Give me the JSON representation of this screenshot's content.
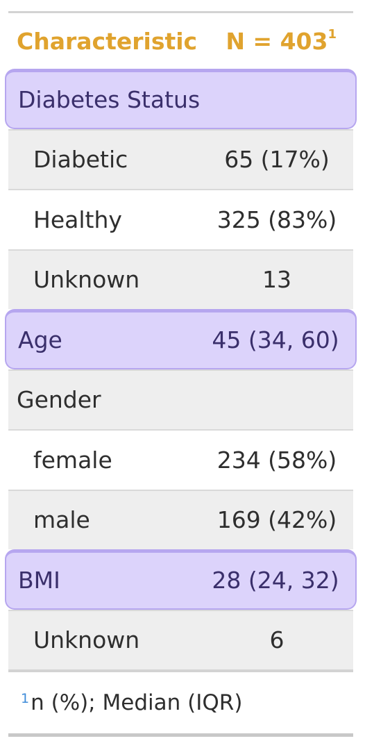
{
  "table": {
    "header": {
      "characteristic": "Characteristic",
      "n_label": "N = 403",
      "n_footnote_mark": "1"
    },
    "rows": [
      {
        "label": "Diabetes Status",
        "value": ""
      },
      {
        "label": "Diabetic",
        "value": "65 (17%)"
      },
      {
        "label": "Healthy",
        "value": "325 (83%)"
      },
      {
        "label": "Unknown",
        "value": "13"
      },
      {
        "label": "Age",
        "value": "45 (34, 60)"
      },
      {
        "label": "Gender",
        "value": ""
      },
      {
        "label": "female",
        "value": "234 (58%)"
      },
      {
        "label": "male",
        "value": "169 (42%)"
      },
      {
        "label": "BMI",
        "value": "28 (24, 32)"
      },
      {
        "label": "Unknown",
        "value": "6"
      }
    ],
    "footnote": {
      "mark": "1",
      "text": "n (%); Median (IQR)"
    }
  },
  "colors": {
    "header_text": "#e0a32e",
    "highlight_fill": "#dcd3fb",
    "highlight_border": "#b6a6ef",
    "shaded_row": "#eeeeee",
    "footnote_mark": "#3d8bd9"
  }
}
